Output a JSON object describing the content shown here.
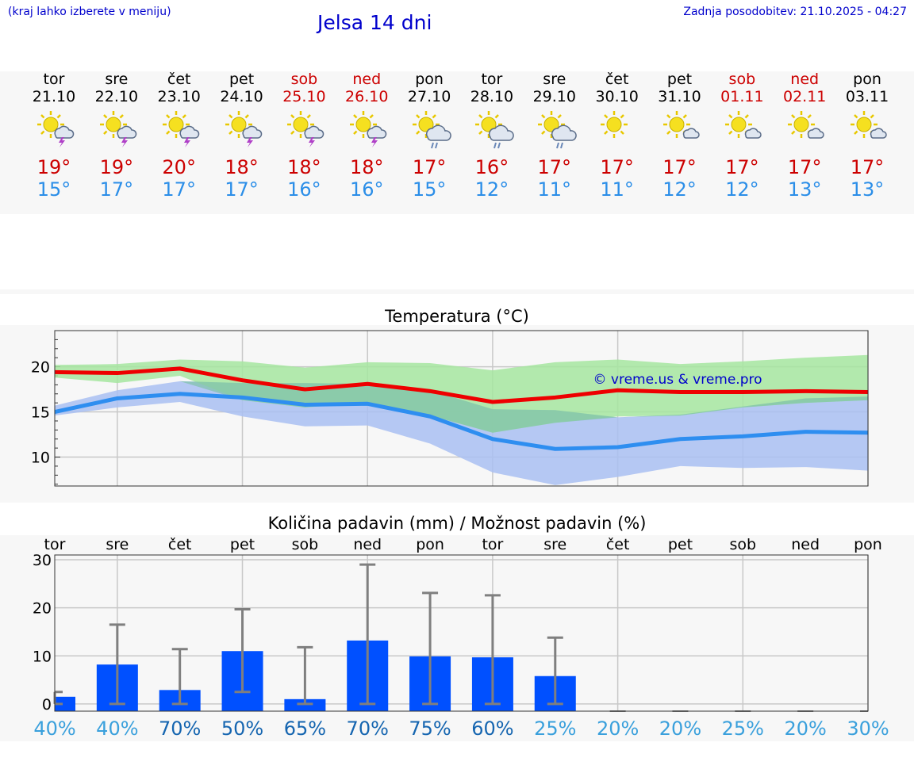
{
  "header": {
    "hint": "(kraj lahko izberete v meniju)",
    "title": "Jelsa 14 dni",
    "updated": "Zadnja posodobitev: 21.10.2025 - 04:27"
  },
  "days": [
    {
      "name": "tor",
      "date": "21.10",
      "weekend": false,
      "icon": "sun-cloud-thunder-icon",
      "tmax": "19°",
      "tmin": "15°"
    },
    {
      "name": "sre",
      "date": "22.10",
      "weekend": false,
      "icon": "sun-cloud-thunder-icon",
      "tmax": "19°",
      "tmin": "17°"
    },
    {
      "name": "čet",
      "date": "23.10",
      "weekend": false,
      "icon": "sun-cloud-thunder-icon",
      "tmax": "20°",
      "tmin": "17°"
    },
    {
      "name": "pet",
      "date": "24.10",
      "weekend": false,
      "icon": "sun-cloud-thunder-icon",
      "tmax": "18°",
      "tmin": "17°"
    },
    {
      "name": "sob",
      "date": "25.10",
      "weekend": true,
      "icon": "sun-cloud-thunder-icon",
      "tmax": "18°",
      "tmin": "16°"
    },
    {
      "name": "ned",
      "date": "26.10",
      "weekend": true,
      "icon": "sun-cloud-thunder-icon",
      "tmax": "18°",
      "tmin": "16°"
    },
    {
      "name": "pon",
      "date": "27.10",
      "weekend": false,
      "icon": "sun-cloud-rain-icon",
      "tmax": "17°",
      "tmin": "15°"
    },
    {
      "name": "tor",
      "date": "28.10",
      "weekend": false,
      "icon": "sun-cloud-rain-icon",
      "tmax": "16°",
      "tmin": "12°"
    },
    {
      "name": "sre",
      "date": "29.10",
      "weekend": false,
      "icon": "sun-cloud-rain-icon",
      "tmax": "17°",
      "tmin": "11°"
    },
    {
      "name": "čet",
      "date": "30.10",
      "weekend": false,
      "icon": "sun-icon",
      "tmax": "17°",
      "tmin": "11°"
    },
    {
      "name": "pet",
      "date": "31.10",
      "weekend": false,
      "icon": "sun-small-cloud-icon",
      "tmax": "17°",
      "tmin": "12°"
    },
    {
      "name": "sob",
      "date": "01.11",
      "weekend": true,
      "icon": "sun-small-cloud-icon",
      "tmax": "17°",
      "tmin": "12°"
    },
    {
      "name": "ned",
      "date": "02.11",
      "weekend": true,
      "icon": "sun-small-cloud-icon",
      "tmax": "17°",
      "tmin": "13°"
    },
    {
      "name": "pon",
      "date": "03.11",
      "weekend": false,
      "icon": "sun-small-cloud-icon",
      "tmax": "17°",
      "tmin": "13°"
    }
  ],
  "colors": {
    "max_line": "#ee0000",
    "min_line": "#2e8ef0",
    "max_band": "#a6e6a0",
    "min_band": "#a9c0f2",
    "bar": "#0050ff",
    "error_bar": "#7f7f7f",
    "weekend_text": "#cc0000",
    "min_text": "#2b8ee8",
    "prob_high": "#1565b0",
    "prob_low": "#3aa0dc"
  },
  "chart_data": [
    {
      "type": "line",
      "title": "Temperatura (°C)",
      "watermark": "© vreme.us & vreme.pro",
      "x": [
        "tor",
        "sre",
        "čet",
        "pet",
        "sob",
        "ned",
        "pon",
        "tor",
        "sre",
        "čet",
        "pet",
        "sob",
        "ned",
        "pon"
      ],
      "ylim": [
        6.8,
        24
      ],
      "yticks": [
        10,
        15,
        20
      ],
      "grid": true,
      "series": [
        {
          "values": [
            19.4,
            19.3,
            19.8,
            18.5,
            17.5,
            18.1,
            17.3,
            16.1,
            16.6,
            17.4,
            17.2,
            17.2,
            17.3,
            17.2
          ],
          "band_low": [
            18.8,
            18.2,
            19.0,
            16.3,
            15.5,
            16.0,
            14.6,
            12.7,
            13.8,
            14.5,
            14.6,
            15.5,
            16.0,
            16.3
          ],
          "band_high": [
            20.2,
            20.3,
            20.8,
            20.6,
            19.9,
            20.5,
            20.4,
            19.6,
            20.5,
            20.8,
            20.3,
            20.6,
            21.0,
            21.3
          ]
        },
        {
          "values": [
            15.0,
            16.5,
            17.0,
            16.6,
            15.8,
            15.9,
            14.5,
            12.0,
            10.9,
            11.1,
            12.0,
            12.3,
            12.8,
            12.7
          ],
          "band_low": [
            14.6,
            15.5,
            16.1,
            14.5,
            13.4,
            13.5,
            11.5,
            8.3,
            6.9,
            7.8,
            9.0,
            8.8,
            8.9,
            8.5
          ],
          "band_high": [
            15.7,
            17.4,
            18.4,
            18.2,
            18.2,
            18.1,
            17.4,
            15.3,
            15.2,
            14.4,
            14.7,
            15.6,
            16.5,
            16.7
          ]
        }
      ]
    },
    {
      "type": "bar",
      "title": "Količina padavin (mm) / Možnost padavin (%)",
      "categories": [
        "tor",
        "sre",
        "čet",
        "pet",
        "sob",
        "ned",
        "pon",
        "tor",
        "sre",
        "čet",
        "pet",
        "sob",
        "ned",
        "pon"
      ],
      "values": [
        1.5,
        8.2,
        2.9,
        11.0,
        1.0,
        13.2,
        9.9,
        9.7,
        5.8,
        0,
        0,
        0,
        0,
        0
      ],
      "err_low": [
        0,
        0,
        0,
        2.5,
        0,
        0,
        0,
        0,
        0,
        0,
        0,
        0,
        0,
        0
      ],
      "err_high": [
        2.5,
        16.5,
        11.4,
        19.7,
        11.8,
        29.0,
        23.1,
        22.6,
        13.8,
        0,
        0,
        0,
        0,
        0
      ],
      "probabilities": [
        "40%",
        "40%",
        "70%",
        "50%",
        "65%",
        "70%",
        "75%",
        "60%",
        "25%",
        "20%",
        "20%",
        "25%",
        "20%",
        "30%"
      ],
      "ylim": [
        -1.5,
        31
      ],
      "yticks": [
        0,
        10,
        20,
        30
      ],
      "grid": true
    }
  ]
}
